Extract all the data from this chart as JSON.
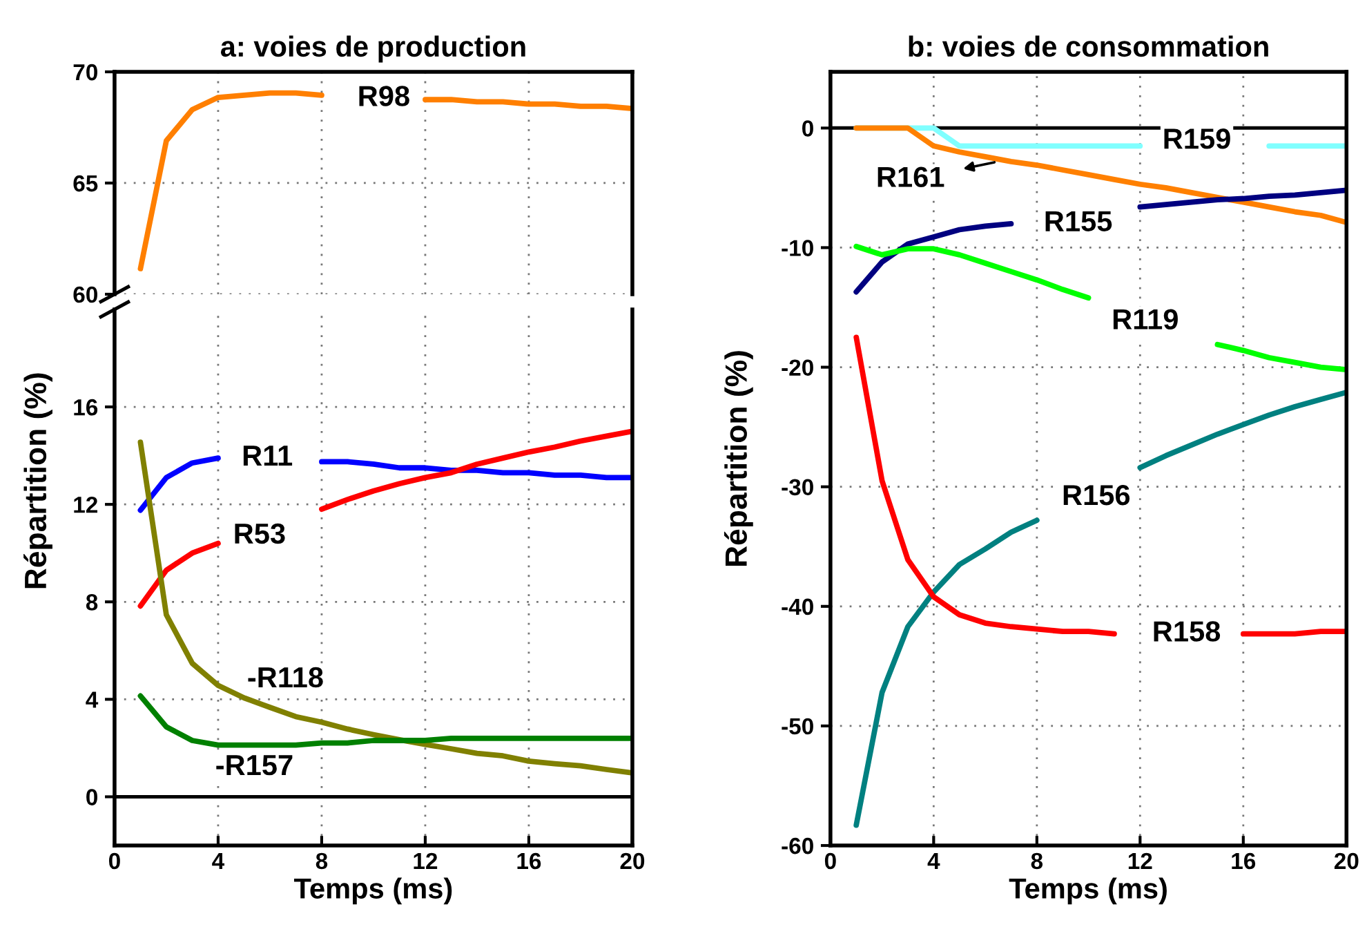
{
  "chart_data": [
    {
      "type": "line",
      "title": "a: voies de production",
      "x": [
        1,
        2,
        3,
        4,
        5,
        6,
        7,
        8,
        9,
        10,
        11,
        12,
        13,
        14,
        15,
        16,
        17,
        18,
        19,
        20
      ],
      "xlim": [
        0,
        20
      ],
      "xticks": [
        0,
        4,
        8,
        12,
        16,
        20
      ],
      "ylim": [
        60,
        70
      ],
      "yticks": [
        60,
        65,
        70
      ],
      "tick_labels": "y",
      "grid": true,
      "series": [
        {
          "color": "#ff7f00",
          "values": [
            61.15,
            66.9,
            68.3,
            68.85,
            68.95,
            69.05,
            69.05,
            68.95,
            null,
            null,
            null,
            68.75,
            68.75,
            68.65,
            68.65,
            68.55,
            68.55,
            68.45,
            68.45,
            68.35
          ]
        }
      ],
      "annotations": [
        "R98"
      ]
    },
    {
      "type": "line",
      "x": [
        1,
        2,
        3,
        4,
        5,
        6,
        7,
        8,
        9,
        10,
        11,
        12,
        13,
        14,
        15,
        16,
        17,
        18,
        19,
        20
      ],
      "xlabel": "Temps (ms)",
      "ylabel": "Répartition (%)",
      "xlim": [
        0,
        20
      ],
      "xticks": [
        0,
        4,
        8,
        12,
        16,
        20
      ],
      "ylim": [
        -2,
        20
      ],
      "yticks": [
        0,
        4,
        8,
        12,
        16
      ],
      "grid": true,
      "ref_lines": [
        {
          "axis": "y",
          "value": 0,
          "color": "#000000"
        }
      ],
      "series": [
        {
          "color": "#0000ff",
          "values": [
            11.76,
            13.1,
            13.7,
            13.9,
            null,
            null,
            null,
            13.75,
            13.75,
            13.65,
            13.5,
            13.5,
            13.4,
            13.4,
            13.3,
            13.3,
            13.2,
            13.2,
            13.1,
            13.1
          ]
        },
        {
          "color": "#ff0000",
          "values": [
            7.83,
            9.3,
            10.0,
            10.4,
            null,
            null,
            null,
            11.8,
            12.2,
            12.55,
            12.85,
            13.1,
            13.3,
            13.65,
            13.9,
            14.15,
            14.35,
            14.6,
            14.8,
            15.0
          ]
        },
        {
          "color": "#808000",
          "values": [
            14.55,
            7.47,
            5.48,
            4.57,
            4.06,
            3.67,
            3.29,
            3.06,
            2.78,
            2.55,
            2.34,
            2.15,
            1.97,
            1.78,
            1.68,
            1.46,
            1.36,
            1.27,
            1.12,
            0.98
          ]
        },
        {
          "color": "#008000",
          "values": [
            4.14,
            2.87,
            2.31,
            2.12,
            2.12,
            2.12,
            2.12,
            2.21,
            2.21,
            2.31,
            2.31,
            2.31,
            2.4,
            2.4,
            2.4,
            2.4,
            2.4,
            2.4,
            2.4,
            2.4
          ]
        }
      ],
      "annotations": [
        "R11",
        "R53",
        "-R118",
        "-R157"
      ]
    },
    {
      "type": "line",
      "title": "b: voies de consommation",
      "x": [
        1,
        2,
        3,
        4,
        5,
        6,
        7,
        8,
        9,
        10,
        11,
        12,
        13,
        14,
        15,
        16,
        17,
        18,
        19,
        20
      ],
      "xlabel": "Temps (ms)",
      "ylabel": "Répartition (%)",
      "xlim": [
        0,
        20
      ],
      "xticks": [
        0,
        4,
        8,
        12,
        16,
        20
      ],
      "ylim": [
        -60,
        4.7
      ],
      "yticks": [
        -60,
        -50,
        -40,
        -30,
        -20,
        -10,
        0
      ],
      "grid": true,
      "ref_lines": [
        {
          "axis": "y",
          "value": 0,
          "color": "#000000"
        }
      ],
      "series": [
        {
          "color": "#80ffff",
          "values": [
            0,
            0,
            0,
            0,
            -1.5,
            -1.5,
            -1.5,
            -1.5,
            -1.5,
            -1.5,
            -1.5,
            -1.5,
            null,
            null,
            null,
            null,
            -1.5,
            -1.5,
            -1.5,
            -1.5
          ]
        },
        {
          "color": "#ff8000",
          "values": [
            0,
            0,
            0,
            -1.5,
            -2.0,
            -2.4,
            -2.8,
            -3.1,
            -3.5,
            -3.9,
            -4.3,
            -4.7,
            -5.0,
            -5.4,
            -5.8,
            -6.2,
            -6.6,
            -7.0,
            -7.3,
            -7.9
          ]
        },
        {
          "color": "#000080",
          "values": [
            -13.7,
            -11.2,
            -9.7,
            -9.1,
            -8.5,
            -8.2,
            -8.0,
            null,
            null,
            null,
            null,
            -6.6,
            -6.4,
            -6.2,
            -6.0,
            -5.9,
            -5.7,
            -5.6,
            -5.4,
            -5.2
          ]
        },
        {
          "color": "#00ff00",
          "values": [
            -9.9,
            -10.6,
            -10.1,
            -10.1,
            -10.6,
            -11.3,
            -12.0,
            -12.7,
            -13.5,
            -14.2,
            null,
            null,
            null,
            null,
            -18.1,
            -18.6,
            -19.2,
            -19.6,
            -20.0,
            -20.2
          ]
        },
        {
          "color": "#008080",
          "values": [
            -58.3,
            -47.2,
            -41.7,
            -38.8,
            -36.5,
            -35.2,
            -33.8,
            -32.8,
            null,
            null,
            null,
            -28.4,
            -27.4,
            -26.5,
            -25.6,
            -24.8,
            -24.0,
            -23.3,
            -22.7,
            -22.1
          ]
        },
        {
          "color": "#ff0000",
          "values": [
            -17.5,
            -29.5,
            -36.1,
            -39.2,
            -40.7,
            -41.4,
            -41.7,
            -41.9,
            -42.1,
            -42.1,
            -42.3,
            null,
            null,
            null,
            null,
            -42.3,
            -42.3,
            -42.3,
            -42.1,
            -42.1
          ]
        }
      ],
      "annotations": [
        "R159",
        "R161",
        "R155",
        "R119",
        "R156",
        "R158"
      ]
    }
  ]
}
